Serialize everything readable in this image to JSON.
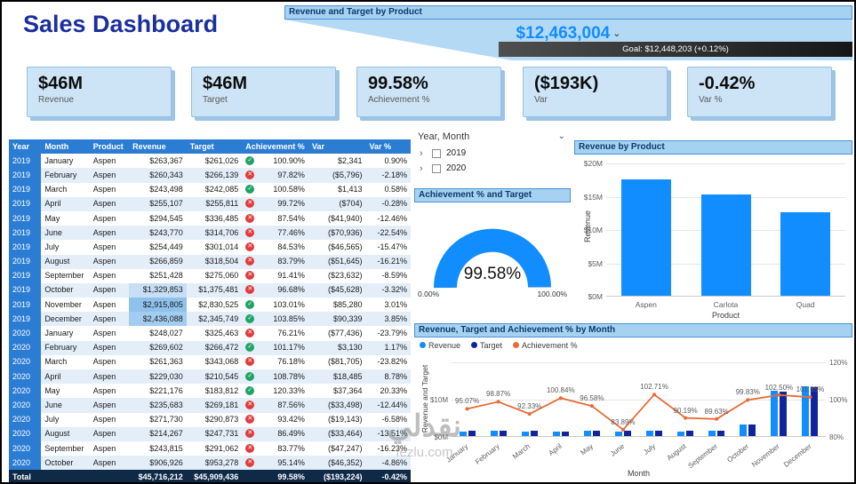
{
  "title": "Sales Dashboard",
  "watermark": {
    "text": "نقدلي",
    "domain": "fezlu.com"
  },
  "kpi_callout": {
    "header": "Revenue and Target by Product",
    "value": "$12,463,004",
    "goal": "Goal: $12,448,203 (+0.12%)"
  },
  "cards": [
    {
      "value": "$46M",
      "label": "Revenue"
    },
    {
      "value": "$46M",
      "label": "Target"
    },
    {
      "value": "99.58%",
      "label": "Achievement %"
    },
    {
      "value": "($193K)",
      "label": "Var"
    },
    {
      "value": "-0.42%",
      "label": "Var %"
    }
  ],
  "slicer": {
    "title": "Year, Month",
    "items": [
      {
        "label": "2019"
      },
      {
        "label": "2020"
      }
    ]
  },
  "table": {
    "columns": [
      "Year",
      "Month",
      "Product",
      "Revenue",
      "Target",
      "Achievement %",
      "Var",
      "Var %"
    ],
    "rows": [
      {
        "year": "2019",
        "month": "January",
        "product": "Aspen",
        "revenue": "$263,367",
        "target": "$261,026",
        "status": "up",
        "achievement": "100.90%",
        "var": "$2,341",
        "var_pct": "0.90%",
        "rev_hl": ""
      },
      {
        "year": "2019",
        "month": "February",
        "product": "Aspen",
        "revenue": "$260,343",
        "target": "$266,139",
        "status": "down",
        "achievement": "97.82%",
        "var": "($5,796)",
        "var_pct": "-2.18%",
        "rev_hl": ""
      },
      {
        "year": "2019",
        "month": "March",
        "product": "Aspen",
        "revenue": "$243,498",
        "target": "$242,085",
        "status": "up",
        "achievement": "100.58%",
        "var": "$1,413",
        "var_pct": "0.58%",
        "rev_hl": ""
      },
      {
        "year": "2019",
        "month": "April",
        "product": "Aspen",
        "revenue": "$255,107",
        "target": "$255,811",
        "status": "down",
        "achievement": "99.72%",
        "var": "($704)",
        "var_pct": "-0.28%",
        "rev_hl": ""
      },
      {
        "year": "2019",
        "month": "May",
        "product": "Aspen",
        "revenue": "$294,545",
        "target": "$336,485",
        "status": "down",
        "achievement": "87.54%",
        "var": "($41,940)",
        "var_pct": "-12.46%",
        "rev_hl": ""
      },
      {
        "year": "2019",
        "month": "June",
        "product": "Aspen",
        "revenue": "$243,770",
        "target": "$314,706",
        "status": "down",
        "achievement": "77.46%",
        "var": "($70,936)",
        "var_pct": "-22.54%",
        "rev_hl": ""
      },
      {
        "year": "2019",
        "month": "July",
        "product": "Aspen",
        "revenue": "$254,449",
        "target": "$301,014",
        "status": "down",
        "achievement": "84.53%",
        "var": "($46,565)",
        "var_pct": "-15.47%",
        "rev_hl": ""
      },
      {
        "year": "2019",
        "month": "August",
        "product": "Aspen",
        "revenue": "$266,859",
        "target": "$318,504",
        "status": "down",
        "achievement": "83.79%",
        "var": "($51,645)",
        "var_pct": "-16.21%",
        "rev_hl": ""
      },
      {
        "year": "2019",
        "month": "September",
        "product": "Aspen",
        "revenue": "$251,428",
        "target": "$275,060",
        "status": "down",
        "achievement": "91.41%",
        "var": "($23,632)",
        "var_pct": "-8.59%",
        "rev_hl": ""
      },
      {
        "year": "2019",
        "month": "October",
        "product": "Aspen",
        "revenue": "$1,329,853",
        "target": "$1,375,481",
        "status": "down",
        "achievement": "96.68%",
        "var": "($45,628)",
        "var_pct": "-3.32%",
        "rev_hl": "#c7def4"
      },
      {
        "year": "2019",
        "month": "November",
        "product": "Aspen",
        "revenue": "$2,915,805",
        "target": "$2,830,525",
        "status": "up",
        "achievement": "103.01%",
        "var": "$85,280",
        "var_pct": "3.01%",
        "rev_hl": "#8ec1eb"
      },
      {
        "year": "2019",
        "month": "December",
        "product": "Aspen",
        "revenue": "$2,436,088",
        "target": "$2,345,749",
        "status": "up",
        "achievement": "103.85%",
        "var": "$90,339",
        "var_pct": "3.85%",
        "rev_hl": "#a3cdf0"
      },
      {
        "year": "2020",
        "month": "January",
        "product": "Aspen",
        "revenue": "$248,027",
        "target": "$325,463",
        "status": "down",
        "achievement": "76.21%",
        "var": "($77,436)",
        "var_pct": "-23.79%",
        "rev_hl": ""
      },
      {
        "year": "2020",
        "month": "February",
        "product": "Aspen",
        "revenue": "$269,602",
        "target": "$266,472",
        "status": "up",
        "achievement": "101.17%",
        "var": "$3,130",
        "var_pct": "1.17%",
        "rev_hl": ""
      },
      {
        "year": "2020",
        "month": "March",
        "product": "Aspen",
        "revenue": "$261,363",
        "target": "$343,068",
        "status": "down",
        "achievement": "76.18%",
        "var": "($81,705)",
        "var_pct": "-23.82%",
        "rev_hl": ""
      },
      {
        "year": "2020",
        "month": "April",
        "product": "Aspen",
        "revenue": "$229,030",
        "target": "$210,545",
        "status": "up",
        "achievement": "108.78%",
        "var": "$18,485",
        "var_pct": "8.78%",
        "rev_hl": ""
      },
      {
        "year": "2020",
        "month": "May",
        "product": "Aspen",
        "revenue": "$221,176",
        "target": "$183,812",
        "status": "up",
        "achievement": "120.33%",
        "var": "$37,364",
        "var_pct": "20.33%",
        "rev_hl": ""
      },
      {
        "year": "2020",
        "month": "June",
        "product": "Aspen",
        "revenue": "$235,683",
        "target": "$269,181",
        "status": "down",
        "achievement": "87.56%",
        "var": "($33,498)",
        "var_pct": "-12.44%",
        "rev_hl": ""
      },
      {
        "year": "2020",
        "month": "July",
        "product": "Aspen",
        "revenue": "$271,730",
        "target": "$290,873",
        "status": "down",
        "achievement": "93.42%",
        "var": "($19,143)",
        "var_pct": "-6.58%",
        "rev_hl": ""
      },
      {
        "year": "2020",
        "month": "August",
        "product": "Aspen",
        "revenue": "$214,267",
        "target": "$247,731",
        "status": "down",
        "achievement": "86.49%",
        "var": "($33,464)",
        "var_pct": "-13.51%",
        "rev_hl": ""
      },
      {
        "year": "2020",
        "month": "September",
        "product": "Aspen",
        "revenue": "$243,815",
        "target": "$291,062",
        "status": "down",
        "achievement": "83.77%",
        "var": "($47,247)",
        "var_pct": "-16.23%",
        "rev_hl": ""
      },
      {
        "year": "2020",
        "month": "October",
        "product": "Aspen",
        "revenue": "$906,926",
        "target": "$953,278",
        "status": "down",
        "achievement": "95.14%",
        "var": "($46,352)",
        "var_pct": "-4.86%",
        "rev_hl": ""
      }
    ],
    "total": {
      "label": "Total",
      "revenue": "$45,716,212",
      "target": "$45,909,436",
      "achievement": "99.58%",
      "var": "($193,224)",
      "var_pct": "-0.42%"
    }
  },
  "chart_data": [
    {
      "type": "bar",
      "title": "Revenue by Product",
      "categories": [
        "Aspen",
        "Carlota",
        "Quad"
      ],
      "values": [
        17.5,
        15.2,
        12.6
      ],
      "values_unit": "$M (estimated from axis)",
      "xlabel": "Product",
      "ylabel": "Revenue",
      "ylim": [
        0,
        20
      ],
      "yticks": [
        "$0M",
        "$5M",
        "$10M",
        "$15M",
        "$20M"
      ],
      "ytick_values": [
        0,
        5,
        10,
        15,
        20
      ],
      "bar_color": "#118DFF",
      "grid": "horizontal"
    },
    {
      "type": "combo",
      "title": "Revenue, Target and Achievement % by Month",
      "categories": [
        "January",
        "February",
        "March",
        "April",
        "May",
        "June",
        "July",
        "August",
        "September",
        "October",
        "November",
        "December"
      ],
      "series": [
        {
          "name": "Revenue",
          "type": "bar",
          "axis": "left",
          "color": "#118DFF",
          "values": [
            1.3,
            1.4,
            1.3,
            1.3,
            1.35,
            1.3,
            1.4,
            1.3,
            1.35,
            3.0,
            12.2,
            13.4
          ]
        },
        {
          "name": "Target",
          "type": "bar",
          "axis": "left",
          "color": "#12239E",
          "values": [
            1.37,
            1.42,
            1.41,
            1.29,
            1.4,
            1.55,
            1.36,
            1.44,
            1.51,
            3.0,
            11.9,
            13.2
          ]
        },
        {
          "name": "Achievement %",
          "type": "line",
          "axis": "right",
          "color": "#E66C37",
          "values": [
            95.07,
            98.87,
            92.33,
            100.84,
            96.58,
            83.89,
            102.71,
            90.19,
            89.63,
            99.83,
            102.5,
            101.35
          ],
          "labels": [
            "95.07%",
            "98.87%",
            "92.33%",
            "100.84%",
            "96.58%",
            "83.89%",
            "102.71%",
            "90.19%",
            "89.63%",
            "99.83%",
            "102.50%",
            "101.35%"
          ]
        }
      ],
      "xlabel": "Month",
      "ylabel_left": "Revenue and Target",
      "ylim_left_musd": [
        0,
        20
      ],
      "ylim_right_pct": [
        80,
        120
      ],
      "left_ticks": [
        {
          "label": "$0M",
          "value": 0
        },
        {
          "label": "$10M",
          "value": 10
        }
      ],
      "right_ticks": [
        {
          "label": "80%",
          "value": 80
        },
        {
          "label": "100%",
          "value": 100
        },
        {
          "label": "120%",
          "value": 120
        }
      ],
      "legend_position": "top-left",
      "bar_values_unit": "$M (estimated from axis)"
    },
    {
      "type": "gauge",
      "title": "Achievement % and Target",
      "value_label": "99.58%",
      "value_pct": 99.58,
      "min": 0,
      "max": 100,
      "min_label": "0.00%",
      "max_label": "100.00%",
      "color": "#118DFF"
    }
  ]
}
